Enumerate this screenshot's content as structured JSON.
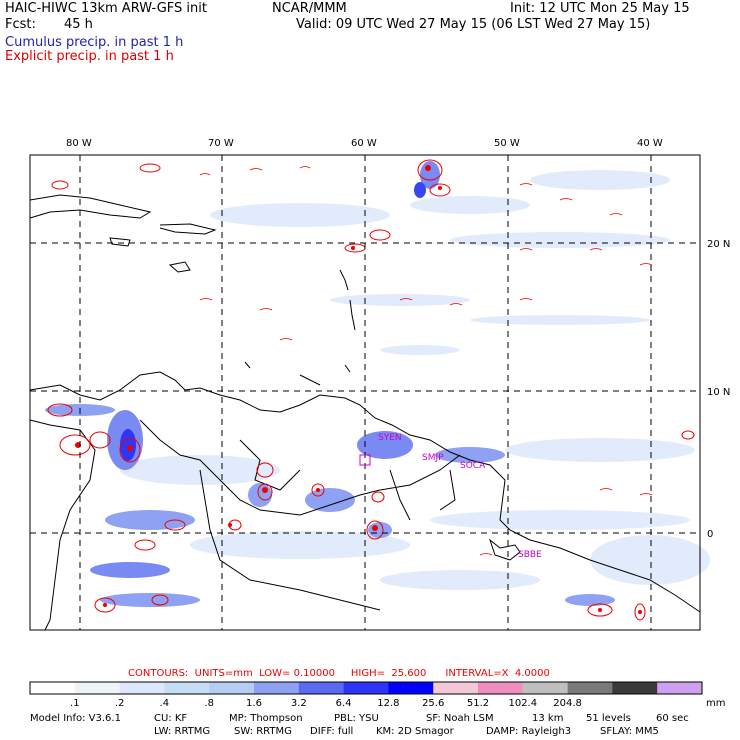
{
  "header": {
    "model": "HAIC-HIWC 13km ARW-GFS init",
    "center": "NCAR/MMM",
    "init": "Init: 12 UTC Mon 25 May 15",
    "fcst_label": "Fcst:",
    "fcst_value": "45 h",
    "valid": "Valid: 09 UTC Wed 27 May 15 (06 LST Wed 27 May 15)",
    "legend_cumulus": "Cumulus precip. in past 1 h",
    "legend_explicit": "Explicit precip. in past 1 h"
  },
  "colors": {
    "cumulus": "#2222aa",
    "explicit": "#dd0000",
    "contour_red": "#ee0000",
    "station": "#cc00cc"
  },
  "map": {
    "lon_labels": [
      "80 W",
      "70 W",
      "60 W",
      "50 W",
      "40 W"
    ],
    "lat_labels": [
      "20 N",
      "10 N",
      "0"
    ],
    "stations": [
      "SYEN",
      "SMJP",
      "SOCA",
      "SBBE"
    ]
  },
  "contours": {
    "label": "CONTOURS:  UNITS=mm  LOW= 0.10000     HIGH=  25.600      INTERVAL=X  4.0000"
  },
  "colorbar": {
    "unit": "mm",
    "ticks": [
      ".1",
      ".2",
      ".4",
      ".8",
      "1.6",
      "3.2",
      "6.4",
      "12.8",
      "25.6",
      "51.2",
      "102.4",
      "204.8"
    ],
    "colors": [
      "#ffffff",
      "#eef4fc",
      "#dde9fb",
      "#c6ddf8",
      "#b5ccf5",
      "#8ea1f3",
      "#5a6af3",
      "#2f35f6",
      "#0000ff",
      "#f5c8d8",
      "#ef8fc0",
      "#bfbfbf",
      "#7a7a7a",
      "#3a3a3a",
      "#cfa0f0"
    ]
  },
  "footer": {
    "line1": [
      "Model Info: V3.6.1",
      "CU: KF",
      "MP: Thompson",
      "PBL: YSU",
      "SF: Noah LSM",
      "13 km",
      "51 levels",
      "60 sec"
    ],
    "line2": [
      "LW: RRTMG",
      "SW: RRTMG",
      "DIFF: full",
      "KM: 2D Smagor",
      "DAMP: Rayleigh3",
      "SFLAY: MM5"
    ]
  }
}
